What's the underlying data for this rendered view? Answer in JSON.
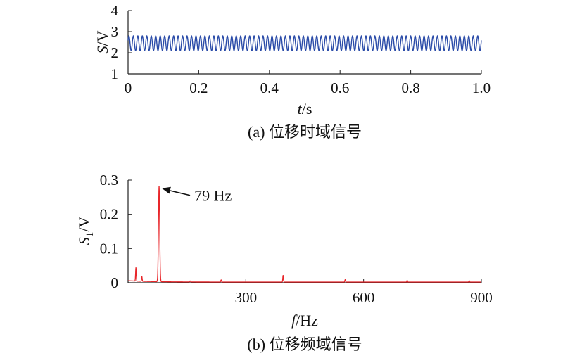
{
  "chart_data": [
    {
      "type": "line",
      "caption": "(a) 位移时域信号",
      "ylabel": {
        "var": "S",
        "unit": "/V"
      },
      "xlabel": {
        "var": "t",
        "unit": "/s"
      },
      "xlim": [
        0,
        1.0
      ],
      "ylim": [
        1,
        4
      ],
      "xticks": [
        "0",
        "0.2",
        "0.4",
        "0.6",
        "0.8",
        "1.0"
      ],
      "yticks": [
        "1",
        "2",
        "3",
        "4"
      ],
      "series": [
        {
          "color": "#2a4ba8",
          "waveform": "sine",
          "frequency_hz": 79,
          "mean": 2.45,
          "amplitude": 0.35
        }
      ]
    },
    {
      "type": "line",
      "caption": "(b) 位移频域信号",
      "ylabel": {
        "var": "S",
        "sub": "1",
        "unit": "/V"
      },
      "xlabel": {
        "var": "f",
        "unit": "/Hz"
      },
      "xlim": [
        0,
        900
      ],
      "ylim": [
        0,
        0.3
      ],
      "xticks": [
        "300",
        "600",
        "900"
      ],
      "yticks": [
        "0",
        "0.1",
        "0.2",
        "0.3"
      ],
      "series": [
        {
          "color": "#e8262a",
          "peaks": [
            {
              "x": 20,
              "y": 0.04
            },
            {
              "x": 35,
              "y": 0.015
            },
            {
              "x": 79,
              "y": 0.28
            },
            {
              "x": 158,
              "y": 0.003
            },
            {
              "x": 237,
              "y": 0.006
            },
            {
              "x": 395,
              "y": 0.02
            },
            {
              "x": 553,
              "y": 0.007
            },
            {
              "x": 711,
              "y": 0.005
            },
            {
              "x": 869,
              "y": 0.004
            }
          ]
        }
      ],
      "annotation": {
        "text": "79 Hz",
        "x": 79,
        "y": 0.28
      }
    }
  ]
}
